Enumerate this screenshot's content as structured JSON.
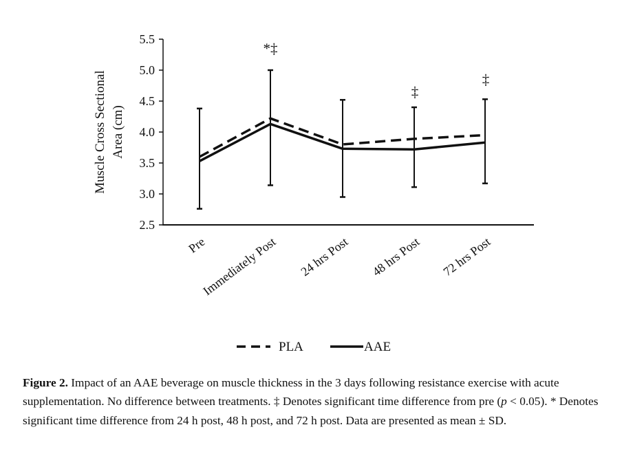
{
  "chart_data": {
    "type": "line",
    "ylabel_lines": [
      "Muscle Cross Sectional",
      "Area (cm)"
    ],
    "xlabel": "",
    "ylim": [
      2.5,
      5.5
    ],
    "yticks": [
      "2.5",
      "3.0",
      "3.5",
      "4.0",
      "4.5",
      "5.0",
      "5.5"
    ],
    "ytick_values": [
      2.5,
      3.0,
      3.5,
      4.0,
      4.5,
      5.0,
      5.5
    ],
    "categories": [
      "Pre",
      "Immediately Post",
      "24 hrs Post",
      "48 hrs Post",
      "72 hrs Post"
    ],
    "series": [
      {
        "name": "PLA",
        "style": "dashed",
        "values": [
          3.6,
          4.22,
          3.8,
          3.89,
          3.95
        ]
      },
      {
        "name": "AAE",
        "style": "solid",
        "values": [
          3.53,
          4.13,
          3.73,
          3.72,
          3.83
        ]
      }
    ],
    "error_bars": {
      "upper": [
        4.38,
        5.0,
        4.52,
        4.4,
        4.53
      ],
      "lower": [
        2.76,
        3.14,
        2.95,
        3.11,
        3.17
      ]
    },
    "annotations": [
      "",
      "*‡",
      "",
      "‡",
      "‡"
    ],
    "annotation_values": [
      null,
      5.45,
      null,
      4.75,
      4.95
    ],
    "legend_placement": "bottom-center",
    "grid": false,
    "color": "#111111"
  },
  "caption": {
    "label": "Figure 2.",
    "text1": " Impact of an AAE beverage on muscle thickness in the 3 days following resistance exercise with acute supplementation. No difference between treatments. ‡ Denotes significant time difference from pre (",
    "p": "p",
    "text2": " < 0.05).  * Denotes significant time difference from 24 h post, 48 h post, and 72 h post. Data are presented as mean ± SD."
  }
}
